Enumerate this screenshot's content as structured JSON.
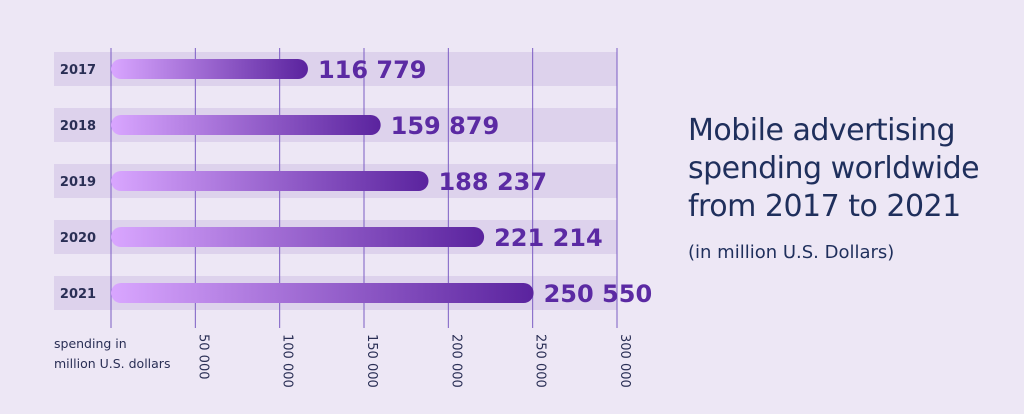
{
  "title": "Mobile advertising\nspending worldwide\nfrom 2017 to 2021",
  "subtitle": "(in million U.S. Dollars)",
  "colors": {
    "background": "#ede7f5",
    "track": "#ddd2ec",
    "bar_start": "#d9a6ff",
    "bar_end": "#5a239e",
    "value_text": "#5b2aa3",
    "gridline": "#7b5cc4",
    "title_text": "#1f2f5c"
  },
  "chart_data": {
    "type": "bar",
    "orientation": "horizontal",
    "categories": [
      "2017",
      "2018",
      "2019",
      "2020",
      "2021"
    ],
    "values": [
      116779,
      159879,
      188237,
      221214,
      250550
    ],
    "value_labels": [
      "116 779",
      "159 879",
      "188 237",
      "221 214",
      "250 550"
    ],
    "xlabel": "spending in\nmillion U.S. dollars",
    "xlim": [
      0,
      300000
    ],
    "xticks": [
      50000,
      100000,
      150000,
      200000,
      250000,
      300000
    ],
    "xtick_labels": [
      "50 000",
      "100 000",
      "150 000",
      "200 000",
      "250 000",
      "300 000"
    ],
    "grid": true,
    "legend": "none"
  }
}
